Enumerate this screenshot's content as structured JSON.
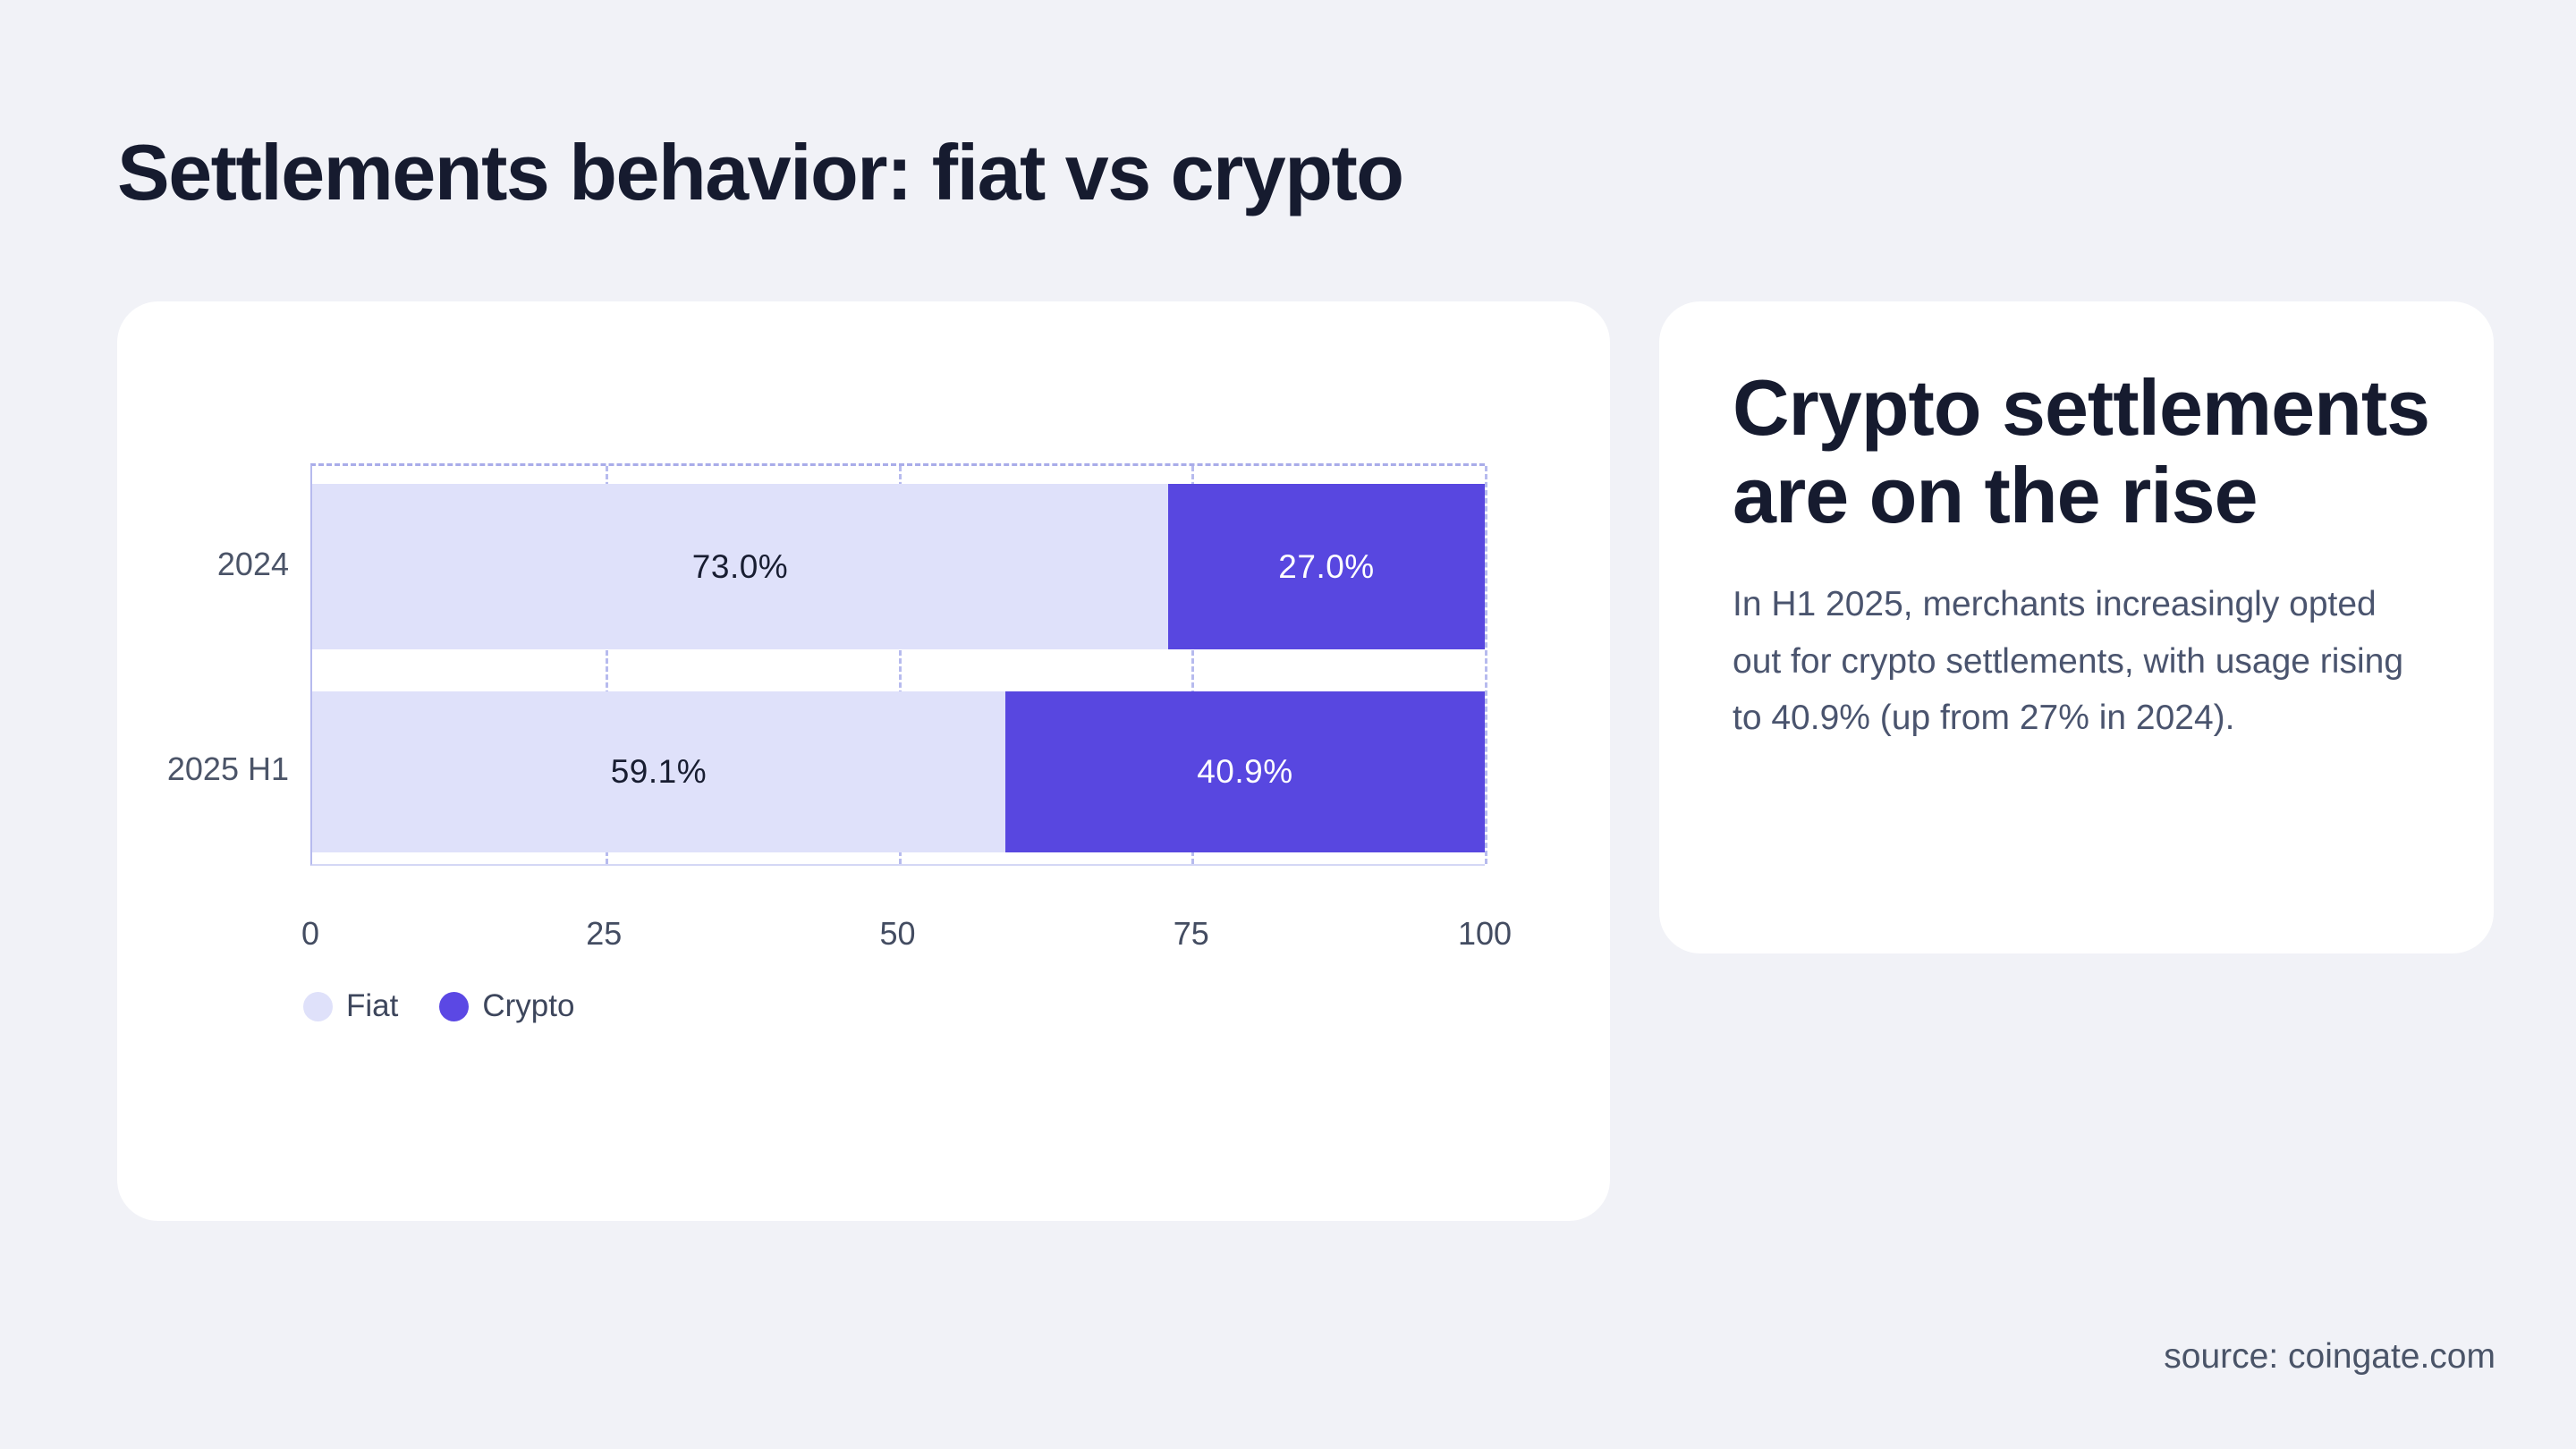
{
  "page": {
    "title": "Settlements behavior: fiat vs crypto",
    "source": "source: coingate.com"
  },
  "chart_data": {
    "type": "bar",
    "orientation": "horizontal",
    "stacked": true,
    "categories": [
      "2024",
      "2025 H1"
    ],
    "series": [
      {
        "name": "Fiat",
        "color": "#dfe1fa",
        "values": [
          73.0,
          59.1
        ],
        "labels": [
          "73.0%",
          "59.1%"
        ]
      },
      {
        "name": "Crypto",
        "color": "#5847e0",
        "values": [
          27.0,
          40.9
        ],
        "labels": [
          "27.0%",
          "40.9%"
        ]
      }
    ],
    "xlim": [
      0,
      100
    ],
    "xticks": [
      "0",
      "25",
      "50",
      "75",
      "100"
    ],
    "grid": "dashed vertical gridlines at 25, 50, 75, 100 and dashed top frame",
    "legend_position": "bottom-left",
    "value_label_position": "center of each segment"
  },
  "info_card": {
    "heading": "Crypto settlements are on the rise",
    "body": "In H1 2025, merchants increasingly opted out for crypto settlements, with usage rising to 40.9% (up from 27% in 2024)."
  },
  "colors": {
    "background": "#f1f2f7",
    "card": "#ffffff",
    "fiat": "#dfe1fa",
    "crypto": "#5847e0",
    "title_text": "#161b2f",
    "muted_text": "#4a546e",
    "grid_stroke": "#a9ace9"
  }
}
